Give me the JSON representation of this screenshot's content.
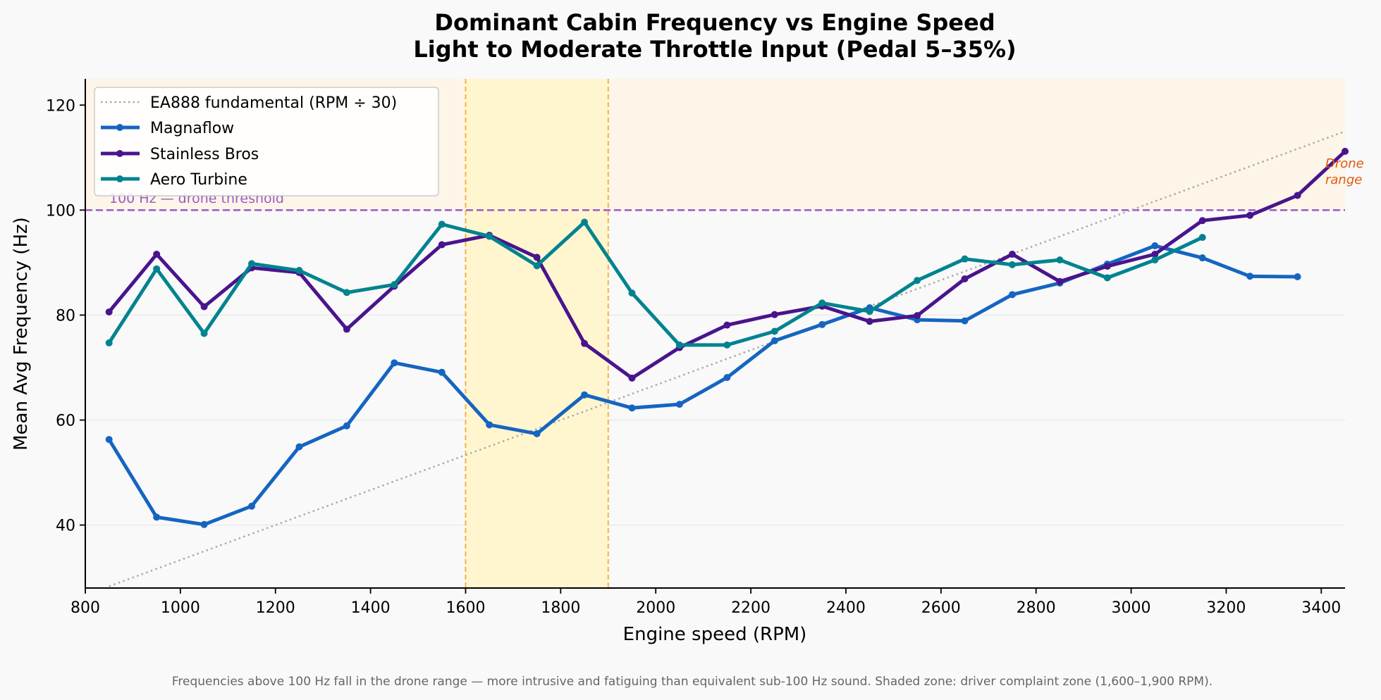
{
  "chart_data": {
    "type": "line",
    "title": "Dominant Cabin Frequency vs Engine Speed",
    "subtitle": "Light to Moderate Throttle Input (Pedal 5–35%)",
    "xlabel": "Engine speed (RPM)",
    "ylabel": "Mean Avg Frequency (Hz)",
    "xlim": [
      800,
      3450
    ],
    "ylim": [
      28,
      125
    ],
    "xticks": [
      800,
      1000,
      1200,
      1400,
      1600,
      1800,
      2000,
      2200,
      2400,
      2600,
      2800,
      3000,
      3200,
      3400
    ],
    "yticks": [
      40,
      60,
      80,
      100,
      120
    ],
    "grid": "horizontal",
    "legend_position": "top-left",
    "reference_line": {
      "name": "EA888 fundamental (RPM ÷ 30)",
      "divisor": 30,
      "color": "#aaaaaa",
      "style": "dotted"
    },
    "threshold": {
      "value": 100,
      "label": "100 Hz — drone threshold",
      "color": "#9b59c6"
    },
    "drone_region": {
      "from": 100,
      "label_line1": "Drone",
      "label_line2": "range",
      "fill": "#fdf5e8",
      "label_color": "#e05a10"
    },
    "complaint_zone": {
      "from": 1600,
      "to": 1900,
      "fill": "#fff6d0",
      "edge_color": "#f5b342"
    },
    "series": [
      {
        "name": "Magnaflow",
        "color": "#1565c0",
        "x": [
          850,
          950,
          1050,
          1150,
          1250,
          1350,
          1450,
          1550,
          1650,
          1750,
          1850,
          1950,
          2050,
          2150,
          2250,
          2350,
          2450,
          2550,
          2650,
          2750,
          2850,
          2950,
          3050,
          3150,
          3250,
          3350
        ],
        "values": [
          56.3,
          41.5,
          40.1,
          43.6,
          54.9,
          58.9,
          70.9,
          69.1,
          59.1,
          57.4,
          64.8,
          62.3,
          63.0,
          68.1,
          75.1,
          78.2,
          81.4,
          79.1,
          78.9,
          83.9,
          86.1,
          89.7,
          93.2,
          90.9,
          87.4,
          87.3
        ]
      },
      {
        "name": "Stainless Bros",
        "color": "#4a148c",
        "x": [
          850,
          950,
          1050,
          1150,
          1250,
          1350,
          1450,
          1550,
          1650,
          1750,
          1850,
          1950,
          2050,
          2150,
          2250,
          2350,
          2450,
          2550,
          2650,
          2750,
          2850,
          2950,
          3050,
          3150,
          3250,
          3350,
          3450
        ],
        "values": [
          80.6,
          91.6,
          81.6,
          89.0,
          88.1,
          77.3,
          85.5,
          93.4,
          95.2,
          91.0,
          74.6,
          68.0,
          73.8,
          78.1,
          80.1,
          81.7,
          78.8,
          79.9,
          86.9,
          91.6,
          86.4,
          89.3,
          91.6,
          98.0,
          99.0,
          102.8,
          111.2
        ]
      },
      {
        "name": "Aero Turbine",
        "color": "#00838f",
        "x": [
          850,
          950,
          1050,
          1150,
          1250,
          1350,
          1450,
          1550,
          1650,
          1750,
          1850,
          1950,
          2050,
          2150,
          2250,
          2350,
          2450,
          2550,
          2650,
          2750,
          2850,
          2950,
          3050,
          3150
        ],
        "values": [
          74.7,
          88.8,
          76.5,
          89.8,
          88.5,
          84.3,
          85.8,
          97.3,
          95.0,
          89.4,
          97.7,
          84.2,
          74.3,
          74.3,
          76.9,
          82.3,
          80.7,
          86.6,
          90.7,
          89.6,
          90.5,
          87.1,
          90.5,
          94.8
        ]
      }
    ],
    "footnote": "Frequencies above 100 Hz fall in the drone range — more intrusive and fatiguing than equivalent sub-100 Hz sound. Shaded zone: driver complaint zone (1,600–1,900 RPM)."
  }
}
